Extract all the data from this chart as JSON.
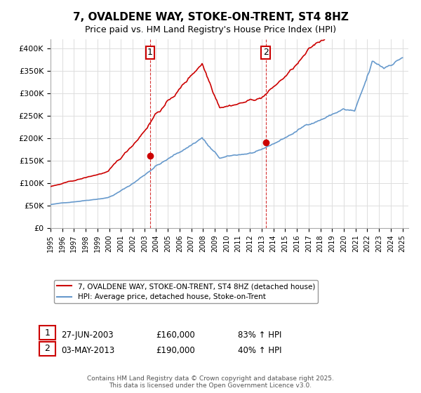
{
  "title": "7, OVALDENE WAY, STOKE-ON-TRENT, ST4 8HZ",
  "subtitle": "Price paid vs. HM Land Registry's House Price Index (HPI)",
  "property_label": "7, OVALDENE WAY, STOKE-ON-TRENT, ST4 8HZ (detached house)",
  "hpi_label": "HPI: Average price, detached house, Stoke-on-Trent",
  "sale1_date": "27-JUN-2003",
  "sale1_price": 160000,
  "sale1_hpi": "83% ↑ HPI",
  "sale2_date": "03-MAY-2013",
  "sale2_price": 190000,
  "sale2_hpi": "40% ↑ HPI",
  "sale1_year": 2003.49,
  "sale2_year": 2013.34,
  "property_color": "#cc0000",
  "hpi_color": "#6699cc",
  "vline_color": "#cc0000",
  "background_color": "#ffffff",
  "grid_color": "#dddddd",
  "ylim": [
    0,
    420000
  ],
  "xlim_start": 1995,
  "xlim_end": 2025.5,
  "footer": "Contains HM Land Registry data © Crown copyright and database right 2025.\nThis data is licensed under the Open Government Licence v3.0."
}
